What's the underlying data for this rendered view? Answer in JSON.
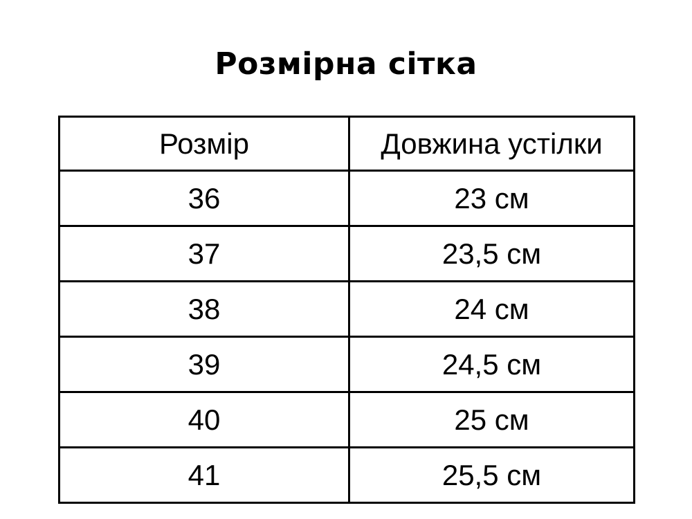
{
  "page": {
    "title": "Розмірна сітка",
    "background_color": "#ffffff",
    "text_color": "#000000",
    "border_color": "#000000"
  },
  "table": {
    "headers": [
      "Розмір",
      "Довжина устілки"
    ],
    "rows": [
      {
        "size": "36",
        "length": "23 см"
      },
      {
        "size": "37",
        "length": "23,5 см"
      },
      {
        "size": "38",
        "length": "24 см"
      },
      {
        "size": "39",
        "length": "24,5 см"
      },
      {
        "size": "40",
        "length": "25 см"
      },
      {
        "size": "41",
        "length": "25,5 см"
      }
    ]
  }
}
